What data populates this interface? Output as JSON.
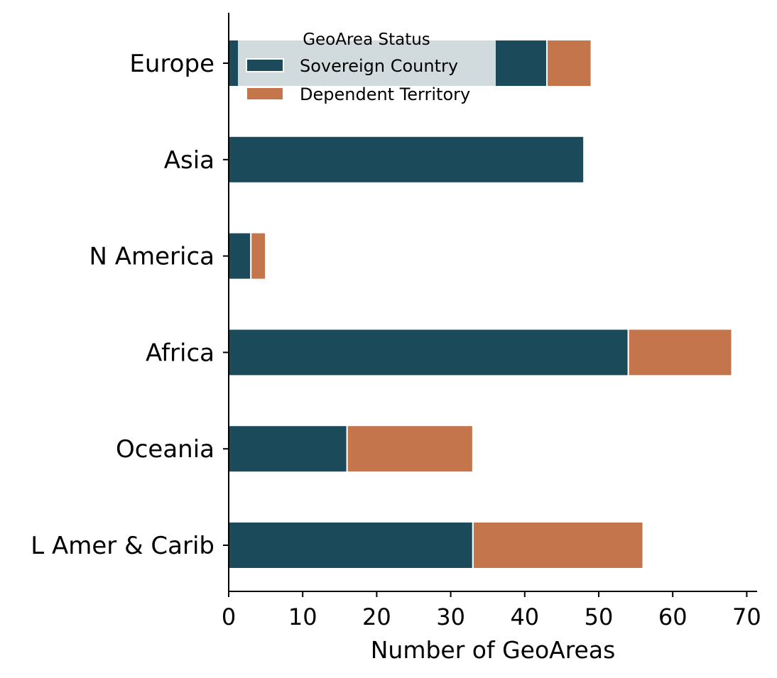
{
  "chart_data": {
    "type": "bar",
    "orientation": "horizontal",
    "stacked": true,
    "categories": [
      "Europe",
      "Asia",
      "N America",
      "Africa",
      "Oceania",
      "L Amer & Carib"
    ],
    "series": [
      {
        "name": "Sovereign Country",
        "values": [
          43,
          48,
          3,
          54,
          16,
          33
        ],
        "color": "#1b4a5a"
      },
      {
        "name": "Dependent Territory",
        "values": [
          6,
          0,
          2,
          14,
          17,
          23
        ],
        "color": "#c5754c"
      }
    ],
    "xlabel": "Number of GeoAreas",
    "ylabel": "",
    "title": "",
    "xlim": [
      0,
      71.5
    ],
    "xticks": [
      0,
      10,
      20,
      30,
      40,
      50,
      60,
      70
    ],
    "xtick_labels": [
      "0",
      "10",
      "20",
      "30",
      "40",
      "50",
      "60",
      "70"
    ],
    "grid": false,
    "legend": {
      "title": "GeoArea Status",
      "placement": "top-center",
      "entries": [
        "Sovereign Country",
        "Dependent Territory"
      ]
    }
  }
}
